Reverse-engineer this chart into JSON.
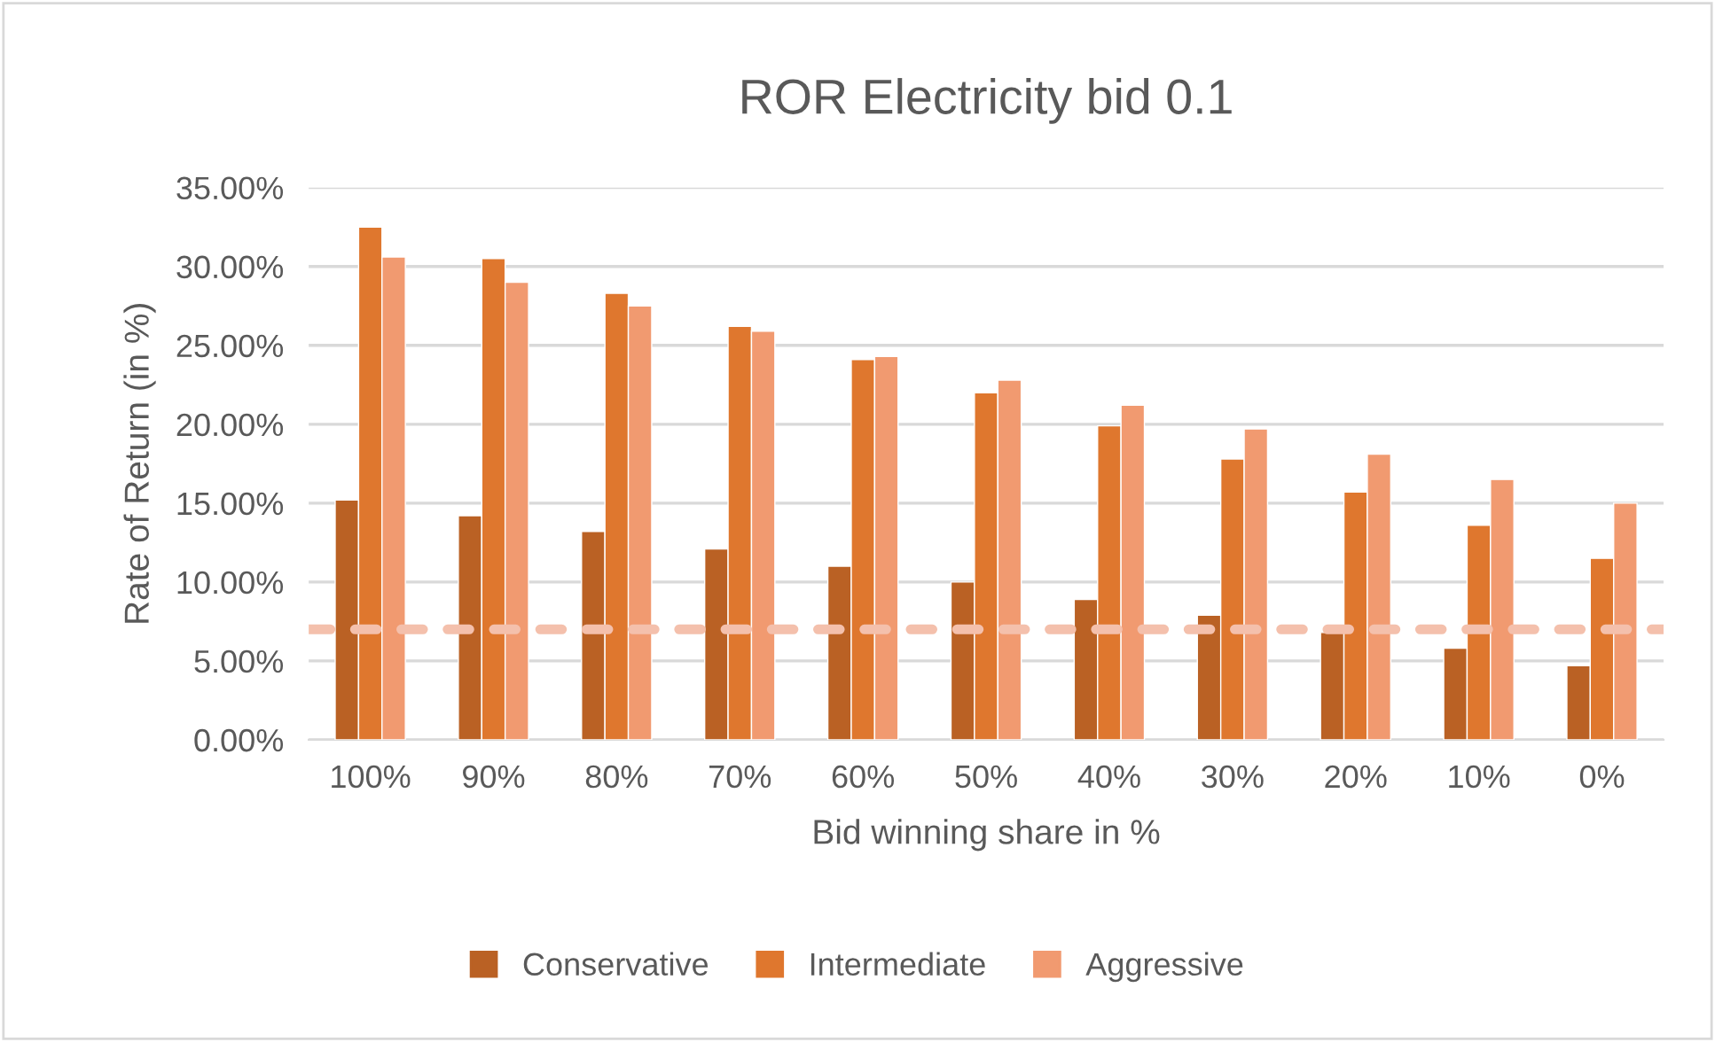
{
  "chart_data": {
    "type": "bar",
    "title": "ROR Electricity bid 0.1",
    "xlabel": "Bid winning share in %",
    "ylabel": "Rate of Return (in %)",
    "categories": [
      "100%",
      "90%",
      "80%",
      "70%",
      "60%",
      "50%",
      "40%",
      "30%",
      "20%",
      "10%",
      "0%"
    ],
    "series": [
      {
        "name": "Conservative",
        "color": "#ba6124",
        "values": [
          15.2,
          14.2,
          13.2,
          12.1,
          11.0,
          10.0,
          8.9,
          7.9,
          6.8,
          5.8,
          4.7
        ]
      },
      {
        "name": "Intermediate",
        "color": "#df772e",
        "values": [
          32.5,
          30.5,
          28.3,
          26.2,
          24.1,
          22.0,
          19.9,
          17.8,
          15.7,
          13.6,
          11.5
        ]
      },
      {
        "name": "Aggressive",
        "color": "#f19a70",
        "values": [
          30.6,
          29.0,
          27.5,
          25.9,
          24.3,
          22.8,
          21.2,
          19.7,
          18.1,
          16.5,
          15.0
        ]
      }
    ],
    "ylim": [
      0,
      35
    ],
    "yticks": [
      {
        "value": 0,
        "label": "0.00%"
      },
      {
        "value": 5,
        "label": "5.00%"
      },
      {
        "value": 10,
        "label": "10.00%"
      },
      {
        "value": 15,
        "label": "15.00%"
      },
      {
        "value": 20,
        "label": "20.00%"
      },
      {
        "value": 25,
        "label": "25.00%"
      },
      {
        "value": 30,
        "label": "30.00%"
      },
      {
        "value": 35,
        "label": "35.00%"
      }
    ],
    "ref_lines": [
      {
        "axis": "y",
        "value": 7.0,
        "color": "#f4c0ac",
        "line_style": "dashed"
      }
    ],
    "grid": "y",
    "legend": "bottom"
  }
}
